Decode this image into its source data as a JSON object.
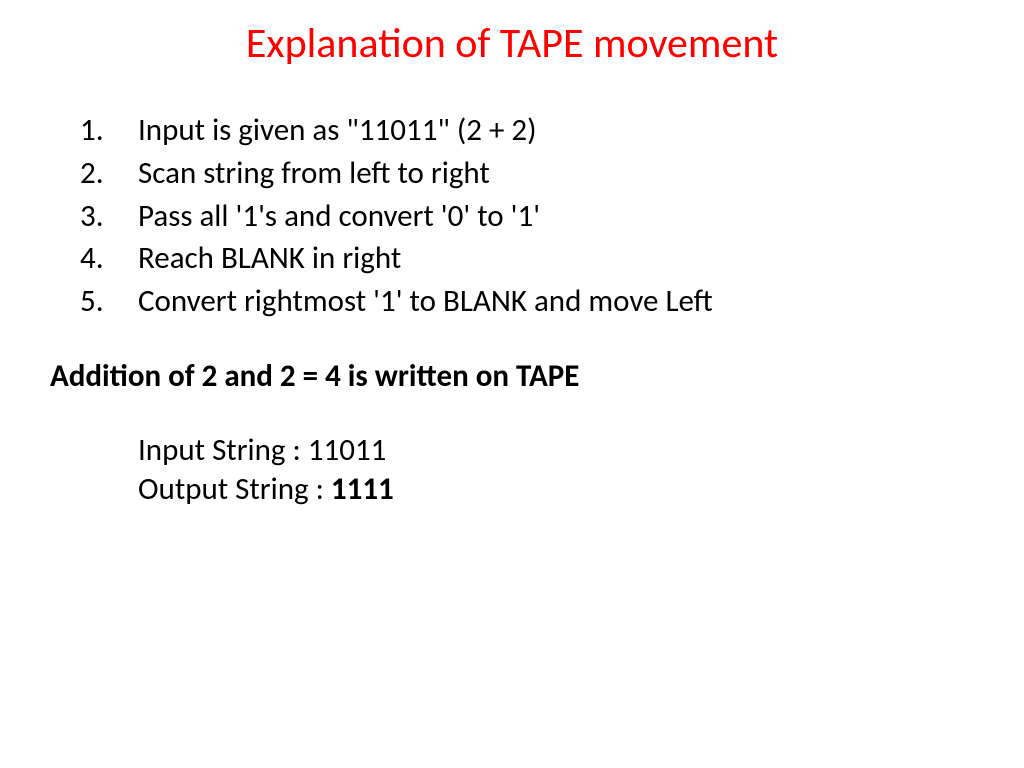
{
  "slide": {
    "title": "Explanation of TAPE movement",
    "title_color": "#ff0000",
    "title_fontsize": 42,
    "body_color": "#000000",
    "body_fontsize": 31,
    "background_color": "#ffffff",
    "steps": [
      "Input is given as \"11011\" (2 + 2)",
      "Scan string from left to right",
      "Pass all '1's and convert '0' to '1'",
      "Reach BLANK in right",
      "Convert rightmost '1' to BLANK and move Left"
    ],
    "result_statement": "Addition of 2 and 2 = 4 is written on TAPE",
    "input_label": "Input String : ",
    "input_value": "11011",
    "output_label": "Output String : ",
    "output_value": "1111"
  }
}
